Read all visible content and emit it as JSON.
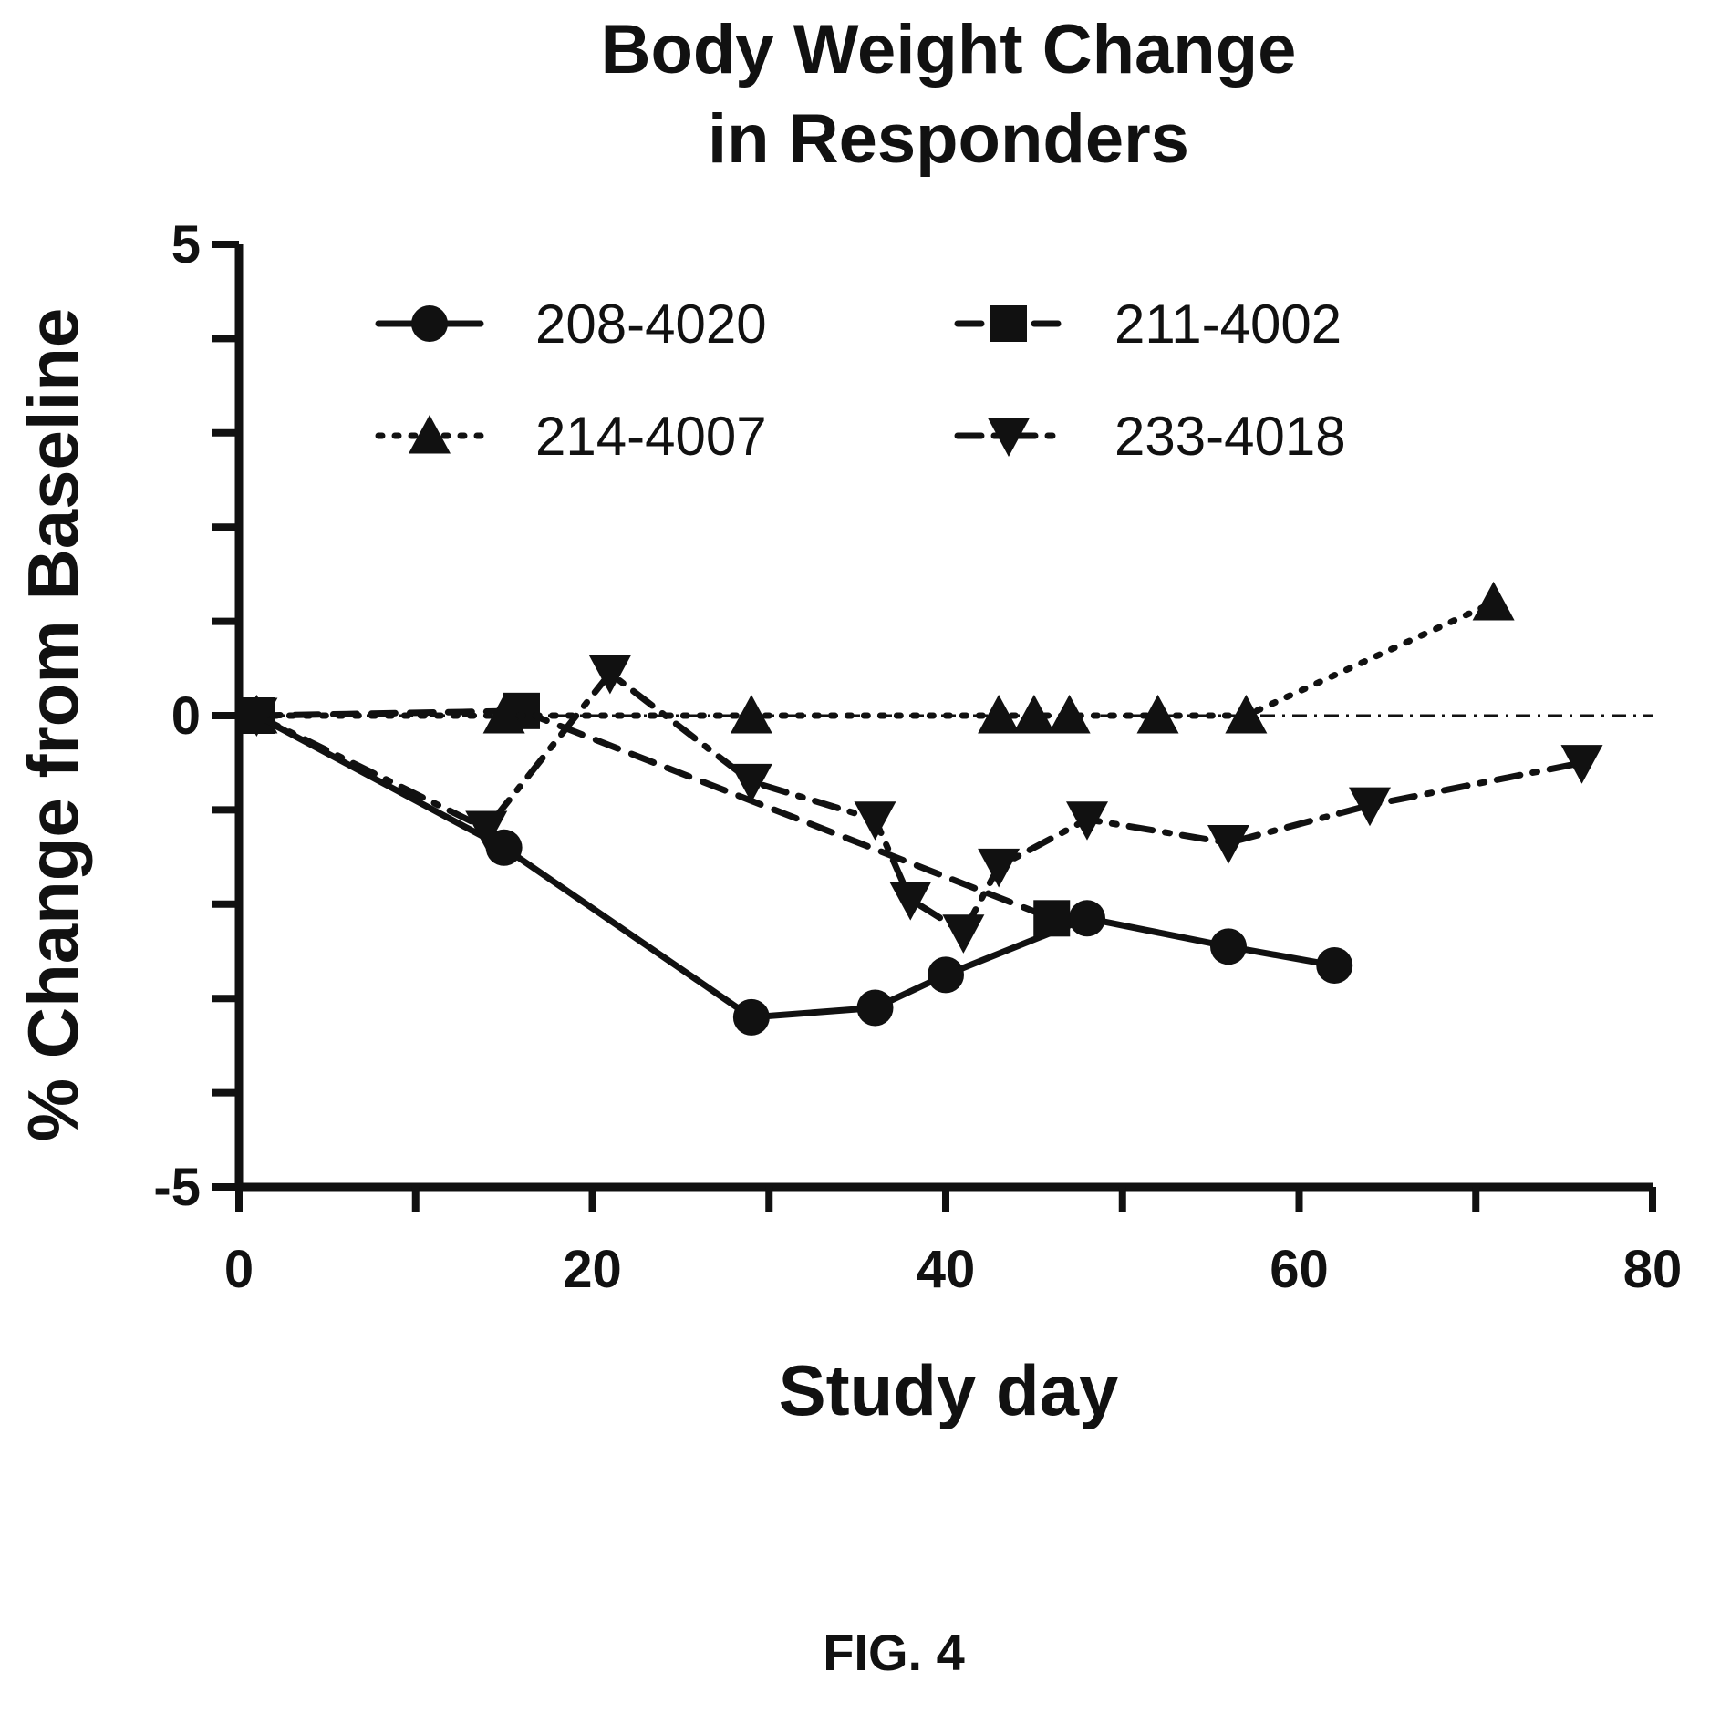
{
  "chart_data": {
    "type": "line",
    "title": [
      "Body Weight Change",
      "in Responders"
    ],
    "xlabel": "Study day",
    "ylabel": "% Change from Baseline",
    "xlim": [
      0,
      80
    ],
    "ylim": [
      -5,
      5
    ],
    "x_ticks": [
      "0",
      "20",
      "40",
      "60",
      "80"
    ],
    "y_ticks": [
      "5",
      "0",
      "-5"
    ],
    "reference_line_y": 0,
    "legend_position": "top",
    "series": [
      {
        "name": "208-4020",
        "marker": "circle",
        "line_style": "solid",
        "points": [
          [
            1,
            0
          ],
          [
            15,
            -1.4
          ],
          [
            29,
            -3.2
          ],
          [
            36,
            -3.1
          ],
          [
            40,
            -2.75
          ],
          [
            48,
            -2.15
          ],
          [
            56,
            -2.45
          ],
          [
            62,
            -2.65
          ]
        ]
      },
      {
        "name": "211-4002",
        "marker": "square",
        "line_style": "dashed",
        "points": [
          [
            1,
            0
          ],
          [
            16,
            0.05
          ],
          [
            46,
            -2.15
          ]
        ]
      },
      {
        "name": "214-4007",
        "marker": "triangle-up",
        "line_style": "dotted",
        "points": [
          [
            1,
            0
          ],
          [
            15,
            0
          ],
          [
            29,
            0
          ],
          [
            43,
            0
          ],
          [
            45,
            0
          ],
          [
            47,
            0
          ],
          [
            52,
            0
          ],
          [
            57,
            0
          ],
          [
            71,
            1.2
          ]
        ]
      },
      {
        "name": "233-4018",
        "marker": "triangle-down",
        "line_style": "dash-dot",
        "points": [
          [
            1,
            0
          ],
          [
            14,
            -1.2
          ],
          [
            21,
            0.45
          ],
          [
            29,
            -0.7
          ],
          [
            36,
            -1.1
          ],
          [
            38,
            -1.95
          ],
          [
            41,
            -2.3
          ],
          [
            43,
            -1.6
          ],
          [
            48,
            -1.1
          ],
          [
            56,
            -1.35
          ],
          [
            64,
            -0.95
          ],
          [
            76,
            -0.5
          ]
        ]
      }
    ]
  },
  "figure_caption": "FIG. 4"
}
